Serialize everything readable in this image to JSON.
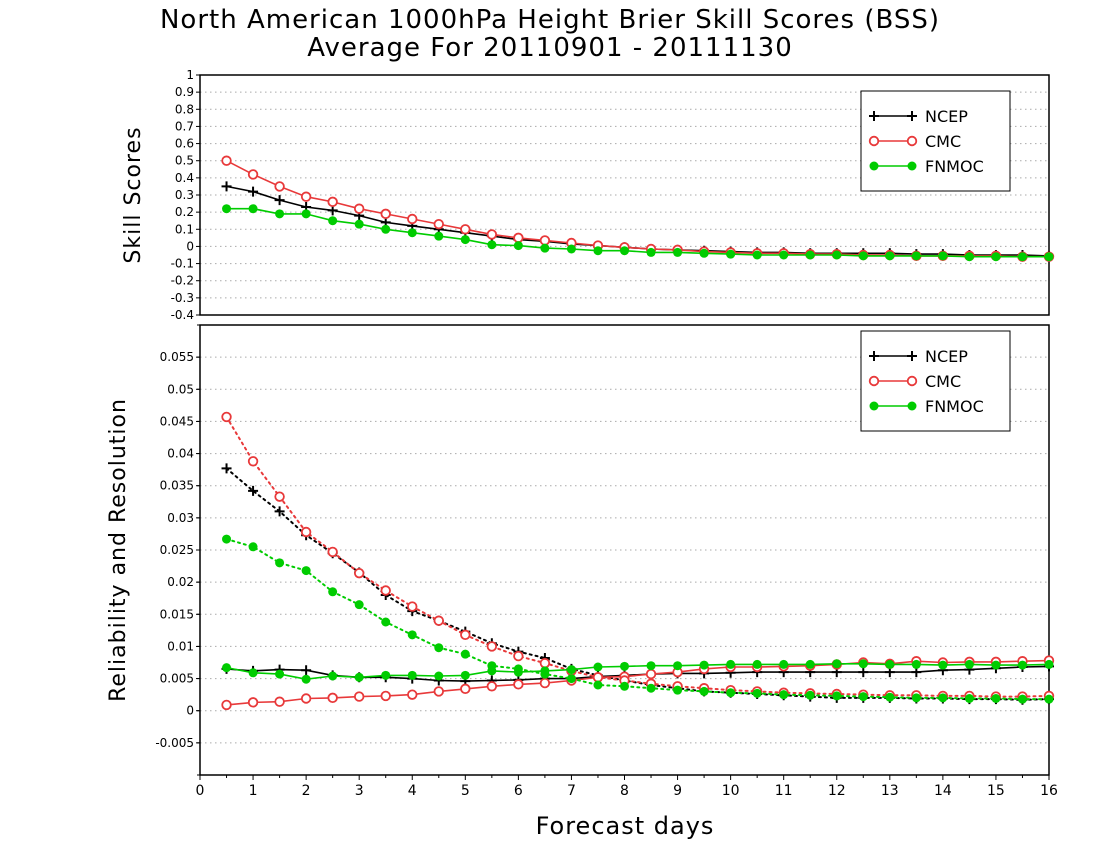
{
  "title": "North American 1000hPa Height Brier Skill Scores (BSS)",
  "subtitle": "Average For 20110901 - 20111130",
  "colors": {
    "NCEP": "#000000",
    "CMC": "#e8393a",
    "FNMOC": "#00cc00"
  },
  "chart_data": [
    {
      "type": "line",
      "panel": "top",
      "ylabel": "Skill Scores",
      "xlabel": "",
      "xlim": [
        0,
        16
      ],
      "ylim": [
        -0.4,
        1
      ],
      "yticks": [
        "-0.4",
        "-0.3",
        "-0.2",
        "-0.1",
        "0",
        "0.1",
        "0.2",
        "0.3",
        "0.4",
        "0.5",
        "0.6",
        "0.7",
        "0.8",
        "0.9",
        "1"
      ],
      "ytick_values": [
        -0.4,
        -0.3,
        -0.2,
        -0.1,
        0,
        0.1,
        0.2,
        0.3,
        0.4,
        0.5,
        0.6,
        0.7,
        0.8,
        0.9,
        1
      ],
      "grid": true,
      "legend": "top-right",
      "x": [
        0.5,
        1,
        1.5,
        2,
        2.5,
        3,
        3.5,
        4,
        4.5,
        5,
        5.5,
        6,
        6.5,
        7,
        7.5,
        8,
        8.5,
        9,
        9.5,
        10,
        10.5,
        11,
        11.5,
        12,
        12.5,
        13,
        13.5,
        14,
        14.5,
        15,
        15.5,
        16
      ],
      "series": [
        {
          "name": "NCEP",
          "marker": "plus",
          "style": "solid",
          "values": [
            0.35,
            0.32,
            0.27,
            0.23,
            0.21,
            0.18,
            0.14,
            0.12,
            0.1,
            0.08,
            0.06,
            0.04,
            0.03,
            0.015,
            0.005,
            -0.005,
            -0.015,
            -0.02,
            -0.025,
            -0.03,
            -0.035,
            -0.035,
            -0.04,
            -0.04,
            -0.04,
            -0.04,
            -0.045,
            -0.045,
            -0.05,
            -0.05,
            -0.05,
            -0.055
          ]
        },
        {
          "name": "CMC",
          "marker": "open-circle",
          "style": "solid",
          "values": [
            0.5,
            0.42,
            0.35,
            0.29,
            0.26,
            0.22,
            0.19,
            0.16,
            0.13,
            0.1,
            0.07,
            0.05,
            0.035,
            0.02,
            0.005,
            -0.005,
            -0.015,
            -0.02,
            -0.03,
            -0.035,
            -0.04,
            -0.04,
            -0.045,
            -0.045,
            -0.05,
            -0.05,
            -0.055,
            -0.055,
            -0.055,
            -0.055,
            -0.06,
            -0.06
          ]
        },
        {
          "name": "FNMOC",
          "marker": "filled-circle",
          "style": "solid",
          "values": [
            0.22,
            0.22,
            0.19,
            0.19,
            0.15,
            0.13,
            0.1,
            0.08,
            0.06,
            0.04,
            0.01,
            0.005,
            -0.01,
            -0.015,
            -0.025,
            -0.025,
            -0.035,
            -0.035,
            -0.04,
            -0.045,
            -0.05,
            -0.05,
            -0.05,
            -0.05,
            -0.055,
            -0.055,
            -0.055,
            -0.055,
            -0.06,
            -0.06,
            -0.06,
            -0.06
          ]
        }
      ]
    },
    {
      "type": "line",
      "panel": "bottom",
      "ylabel": "Reliability and Resolution",
      "xlabel": "Forecast days",
      "xlim": [
        0,
        16
      ],
      "ylim": [
        -0.01,
        0.06
      ],
      "yticks": [
        "-0.005",
        "0",
        "0.005",
        "0.01",
        "0.015",
        "0.02",
        "0.025",
        "0.03",
        "0.035",
        "0.04",
        "0.045",
        "0.05",
        "0.055"
      ],
      "ytick_values": [
        -0.005,
        0,
        0.005,
        0.01,
        0.015,
        0.02,
        0.025,
        0.03,
        0.035,
        0.04,
        0.045,
        0.05,
        0.055
      ],
      "xticks": [
        "0",
        "1",
        "2",
        "3",
        "4",
        "5",
        "6",
        "7",
        "8",
        "9",
        "10",
        "11",
        "12",
        "13",
        "14",
        "15",
        "16"
      ],
      "xtick_values": [
        0,
        1,
        2,
        3,
        4,
        5,
        6,
        7,
        8,
        9,
        10,
        11,
        12,
        13,
        14,
        15,
        16
      ],
      "grid": true,
      "legend": "top-right",
      "x": [
        0.5,
        1,
        1.5,
        2,
        2.5,
        3,
        3.5,
        4,
        4.5,
        5,
        5.5,
        6,
        6.5,
        7,
        7.5,
        8,
        8.5,
        9,
        9.5,
        10,
        10.5,
        11,
        11.5,
        12,
        12.5,
        13,
        13.5,
        14,
        14.5,
        15,
        15.5,
        16
      ],
      "series": [
        {
          "name": "NCEP",
          "measure": "Reliability",
          "marker": "plus",
          "style": "solid",
          "values": [
            0.0065,
            0.0062,
            0.0064,
            0.0063,
            0.0055,
            0.0052,
            0.0052,
            0.005,
            0.0047,
            0.0046,
            0.0047,
            0.0048,
            0.005,
            0.005,
            0.0053,
            0.0055,
            0.0057,
            0.0058,
            0.0058,
            0.0059,
            0.006,
            0.006,
            0.006,
            0.006,
            0.006,
            0.006,
            0.006,
            0.0063,
            0.0064,
            0.0066,
            0.0068,
            0.0069
          ]
        },
        {
          "name": "NCEP",
          "measure": "Resolution",
          "marker": "plus",
          "style": "dotted",
          "values": [
            0.0377,
            0.0342,
            0.031,
            0.0273,
            0.0245,
            0.0215,
            0.018,
            0.0155,
            0.014,
            0.0123,
            0.0105,
            0.0092,
            0.0082,
            0.0065,
            0.0055,
            0.0047,
            0.004,
            0.0035,
            0.003,
            0.0028,
            0.0026,
            0.0024,
            0.0022,
            0.002,
            0.002,
            0.002,
            0.0019,
            0.0019,
            0.0018,
            0.0018,
            0.0017,
            0.0018
          ]
        },
        {
          "name": "CMC",
          "measure": "Reliability",
          "marker": "open-circle",
          "style": "solid",
          "values": [
            0.0009,
            0.0013,
            0.0014,
            0.0019,
            0.002,
            0.0022,
            0.0023,
            0.0025,
            0.003,
            0.0034,
            0.0038,
            0.0041,
            0.0043,
            0.0047,
            0.0052,
            0.0053,
            0.0057,
            0.006,
            0.0065,
            0.0068,
            0.0068,
            0.0069,
            0.007,
            0.0072,
            0.0075,
            0.0073,
            0.0077,
            0.0075,
            0.0076,
            0.0076,
            0.0077,
            0.0078
          ]
        },
        {
          "name": "CMC",
          "measure": "Resolution",
          "marker": "open-circle",
          "style": "dotted",
          "values": [
            0.0457,
            0.0388,
            0.0333,
            0.0278,
            0.0247,
            0.0214,
            0.0187,
            0.0162,
            0.014,
            0.0118,
            0.01,
            0.0085,
            0.0074,
            0.0062,
            0.0052,
            0.0047,
            0.0042,
            0.0038,
            0.0035,
            0.0032,
            0.003,
            0.0028,
            0.0027,
            0.0026,
            0.0025,
            0.0024,
            0.0024,
            0.0023,
            0.0023,
            0.0022,
            0.0022,
            0.0023
          ]
        },
        {
          "name": "FNMOC",
          "measure": "Reliability",
          "marker": "filled-circle",
          "style": "solid",
          "values": [
            0.0067,
            0.0059,
            0.0057,
            0.0049,
            0.0054,
            0.0052,
            0.0055,
            0.0055,
            0.0054,
            0.0055,
            0.0062,
            0.006,
            0.0062,
            0.0064,
            0.0068,
            0.0069,
            0.007,
            0.007,
            0.0071,
            0.0072,
            0.0072,
            0.0072,
            0.0072,
            0.0073,
            0.0073,
            0.0072,
            0.0072,
            0.0071,
            0.0072,
            0.0071,
            0.0071,
            0.0072
          ]
        },
        {
          "name": "FNMOC",
          "measure": "Resolution",
          "marker": "filled-circle",
          "style": "dotted",
          "values": [
            0.0267,
            0.0255,
            0.023,
            0.0218,
            0.0185,
            0.0165,
            0.0138,
            0.0118,
            0.0098,
            0.0088,
            0.007,
            0.0065,
            0.0057,
            0.005,
            0.004,
            0.0038,
            0.0035,
            0.0032,
            0.003,
            0.0028,
            0.0027,
            0.0025,
            0.0024,
            0.0023,
            0.0022,
            0.0021,
            0.002,
            0.002,
            0.0019,
            0.0019,
            0.0018,
            0.0018
          ]
        }
      ]
    }
  ],
  "legend": [
    {
      "label": "NCEP",
      "marker": "plus"
    },
    {
      "label": "CMC",
      "marker": "open-circle"
    },
    {
      "label": "FNMOC",
      "marker": "filled-circle"
    }
  ]
}
